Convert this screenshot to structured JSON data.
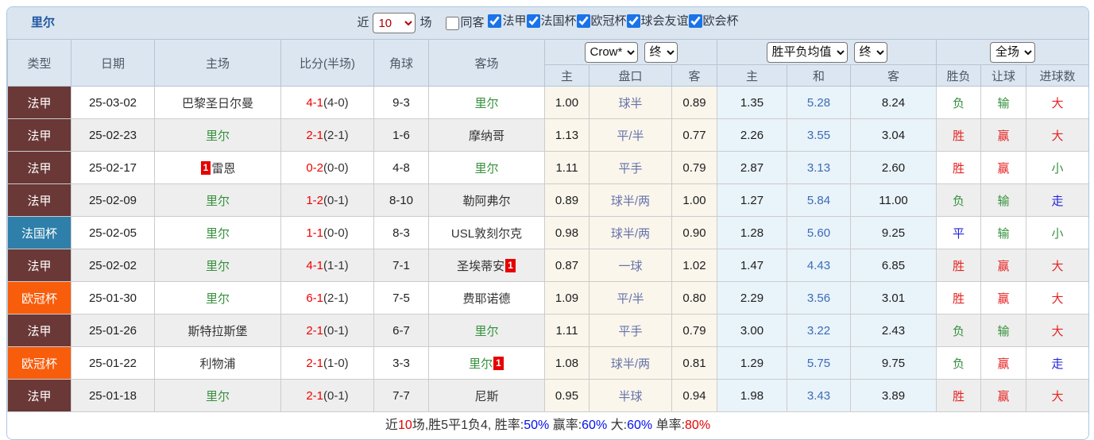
{
  "colors": {
    "topbar_bg": "#dbe5f0",
    "header_bg": "#dce6f1",
    "title_blue": "#1e56a0",
    "type_ligue1": "#693837",
    "type_coupe": "#2e7fa9",
    "type_ucl": "#f85d0c",
    "score_red": "#f00000",
    "team_green": "#35913c",
    "win_red": "#e62222",
    "lose_green": "#2e8b2e",
    "draw_blue": "#2323dd",
    "handicap_col_bg": "#faf6ec",
    "mean_col_bg": "#e9f3fa",
    "line_text": "#6672a9",
    "mean_draw_text": "#3a6cb5",
    "footer_blue": "#0010ee",
    "footer_red": "#e60000",
    "stripe_gray": "#eeeeee"
  },
  "topbar": {
    "team": "里尔",
    "near_label": "近",
    "games_value": "10",
    "games_suffix": "场",
    "same_away_label": "同客",
    "same_away_checked": false,
    "leagues": [
      {
        "label": "法甲",
        "checked": true
      },
      {
        "label": "法国杯",
        "checked": true
      },
      {
        "label": "欧冠杯",
        "checked": true
      },
      {
        "label": "球会友谊",
        "checked": true
      },
      {
        "label": "欧会杯",
        "checked": true
      }
    ]
  },
  "header": {
    "type": "类型",
    "date": "日期",
    "home": "主场",
    "score": "比分(半场)",
    "corner": "角球",
    "away": "客场",
    "odds_source_select": "Crow*",
    "odds_time_select": "终",
    "mean_select": "胜平负均值",
    "mean_time_select": "终",
    "scope_select": "全场",
    "sub_home": "主",
    "sub_line": "盘口",
    "sub_away": "客",
    "sub_mean_home": "主",
    "sub_mean_draw": "和",
    "sub_mean_away": "客",
    "sub_result": "胜负",
    "sub_handicap": "让球",
    "sub_goals": "进球数"
  },
  "rows": [
    {
      "type": "法甲",
      "type_color": "maroon",
      "date": "25-03-02",
      "home": {
        "name": "巴黎圣日尔曼",
        "color": "dark",
        "badge_before": "",
        "badge_after": ""
      },
      "score_ft": "4-1",
      "score_ht": "(4-0)",
      "corner": "9-3",
      "away": {
        "name": "里尔",
        "color": "green",
        "badge_before": "",
        "badge_after": ""
      },
      "odds": {
        "home": "1.00",
        "line": "球半",
        "away": "0.89"
      },
      "mean": {
        "home": "1.35",
        "draw": "5.28",
        "away": "8.24"
      },
      "result": {
        "outcome": "负",
        "outcome_color": "green",
        "handicap": "输",
        "handicap_color": "green",
        "goals": "大",
        "goals_color": "red"
      }
    },
    {
      "type": "法甲",
      "type_color": "maroon",
      "date": "25-02-23",
      "home": {
        "name": "里尔",
        "color": "green",
        "badge_before": "",
        "badge_after": ""
      },
      "score_ft": "2-1",
      "score_ht": "(2-1)",
      "corner": "1-6",
      "away": {
        "name": "摩纳哥",
        "color": "dark",
        "badge_before": "",
        "badge_after": ""
      },
      "odds": {
        "home": "1.13",
        "line": "平/半",
        "away": "0.77"
      },
      "mean": {
        "home": "2.26",
        "draw": "3.55",
        "away": "3.04"
      },
      "result": {
        "outcome": "胜",
        "outcome_color": "red",
        "handicap": "赢",
        "handicap_color": "red",
        "goals": "大",
        "goals_color": "red"
      }
    },
    {
      "type": "法甲",
      "type_color": "maroon",
      "date": "25-02-17",
      "home": {
        "name": "雷恩",
        "color": "dark",
        "badge_before": "1",
        "badge_after": ""
      },
      "score_ft": "0-2",
      "score_ht": "(0-0)",
      "corner": "4-8",
      "away": {
        "name": "里尔",
        "color": "green",
        "badge_before": "",
        "badge_after": ""
      },
      "odds": {
        "home": "1.11",
        "line": "平手",
        "away": "0.79"
      },
      "mean": {
        "home": "2.87",
        "draw": "3.13",
        "away": "2.60"
      },
      "result": {
        "outcome": "胜",
        "outcome_color": "red",
        "handicap": "赢",
        "handicap_color": "red",
        "goals": "小",
        "goals_color": "green"
      }
    },
    {
      "type": "法甲",
      "type_color": "maroon",
      "date": "25-02-09",
      "home": {
        "name": "里尔",
        "color": "green",
        "badge_before": "",
        "badge_after": ""
      },
      "score_ft": "1-2",
      "score_ht": "(0-1)",
      "corner": "8-10",
      "away": {
        "name": "勒阿弗尔",
        "color": "dark",
        "badge_before": "",
        "badge_after": ""
      },
      "odds": {
        "home": "0.89",
        "line": "球半/两",
        "away": "1.00"
      },
      "mean": {
        "home": "1.27",
        "draw": "5.84",
        "away": "11.00"
      },
      "result": {
        "outcome": "负",
        "outcome_color": "green",
        "handicap": "输",
        "handicap_color": "green",
        "goals": "走",
        "goals_color": "blue"
      }
    },
    {
      "type": "法国杯",
      "type_color": "lblue",
      "date": "25-02-05",
      "home": {
        "name": "里尔",
        "color": "green",
        "badge_before": "",
        "badge_after": ""
      },
      "score_ft": "1-1",
      "score_ht": "(0-0)",
      "corner": "8-3",
      "away": {
        "name": "USL敦刻尔克",
        "color": "dark",
        "badge_before": "",
        "badge_after": ""
      },
      "odds": {
        "home": "0.98",
        "line": "球半/两",
        "away": "0.90"
      },
      "mean": {
        "home": "1.28",
        "draw": "5.60",
        "away": "9.25"
      },
      "result": {
        "outcome": "平",
        "outcome_color": "blue",
        "handicap": "输",
        "handicap_color": "green",
        "goals": "小",
        "goals_color": "green"
      }
    },
    {
      "type": "法甲",
      "type_color": "maroon",
      "date": "25-02-02",
      "home": {
        "name": "里尔",
        "color": "green",
        "badge_before": "",
        "badge_after": ""
      },
      "score_ft": "4-1",
      "score_ht": "(1-1)",
      "corner": "7-1",
      "away": {
        "name": "圣埃蒂安",
        "color": "dark",
        "badge_before": "",
        "badge_after": "1"
      },
      "odds": {
        "home": "0.87",
        "line": "一球",
        "away": "1.02"
      },
      "mean": {
        "home": "1.47",
        "draw": "4.43",
        "away": "6.85"
      },
      "result": {
        "outcome": "胜",
        "outcome_color": "red",
        "handicap": "赢",
        "handicap_color": "red",
        "goals": "大",
        "goals_color": "red"
      }
    },
    {
      "type": "欧冠杯",
      "type_color": "orange",
      "date": "25-01-30",
      "home": {
        "name": "里尔",
        "color": "green",
        "badge_before": "",
        "badge_after": ""
      },
      "score_ft": "6-1",
      "score_ht": "(2-1)",
      "corner": "7-5",
      "away": {
        "name": "费耶诺德",
        "color": "dark",
        "badge_before": "",
        "badge_after": ""
      },
      "odds": {
        "home": "1.09",
        "line": "平/半",
        "away": "0.80"
      },
      "mean": {
        "home": "2.29",
        "draw": "3.56",
        "away": "3.01"
      },
      "result": {
        "outcome": "胜",
        "outcome_color": "red",
        "handicap": "赢",
        "handicap_color": "red",
        "goals": "大",
        "goals_color": "red"
      }
    },
    {
      "type": "法甲",
      "type_color": "maroon",
      "date": "25-01-26",
      "home": {
        "name": "斯特拉斯堡",
        "color": "dark",
        "badge_before": "",
        "badge_after": ""
      },
      "score_ft": "2-1",
      "score_ht": "(0-1)",
      "corner": "6-7",
      "away": {
        "name": "里尔",
        "color": "green",
        "badge_before": "",
        "badge_after": ""
      },
      "odds": {
        "home": "1.11",
        "line": "平手",
        "away": "0.79"
      },
      "mean": {
        "home": "3.00",
        "draw": "3.22",
        "away": "2.43"
      },
      "result": {
        "outcome": "负",
        "outcome_color": "green",
        "handicap": "输",
        "handicap_color": "green",
        "goals": "大",
        "goals_color": "red"
      }
    },
    {
      "type": "欧冠杯",
      "type_color": "orange",
      "date": "25-01-22",
      "home": {
        "name": "利物浦",
        "color": "dark",
        "badge_before": "",
        "badge_after": ""
      },
      "score_ft": "2-1",
      "score_ht": "(1-0)",
      "corner": "3-3",
      "away": {
        "name": "里尔",
        "color": "green",
        "badge_before": "",
        "badge_after": "1"
      },
      "odds": {
        "home": "1.08",
        "line": "球半/两",
        "away": "0.81"
      },
      "mean": {
        "home": "1.29",
        "draw": "5.75",
        "away": "9.75"
      },
      "result": {
        "outcome": "负",
        "outcome_color": "green",
        "handicap": "赢",
        "handicap_color": "red",
        "goals": "走",
        "goals_color": "blue"
      }
    },
    {
      "type": "法甲",
      "type_color": "maroon",
      "date": "25-01-18",
      "home": {
        "name": "里尔",
        "color": "green",
        "badge_before": "",
        "badge_after": ""
      },
      "score_ft": "2-1",
      "score_ht": "(0-1)",
      "corner": "7-7",
      "away": {
        "name": "尼斯",
        "color": "dark",
        "badge_before": "",
        "badge_after": ""
      },
      "odds": {
        "home": "0.95",
        "line": "半球",
        "away": "0.94"
      },
      "mean": {
        "home": "1.98",
        "draw": "3.43",
        "away": "3.89"
      },
      "result": {
        "outcome": "胜",
        "outcome_color": "red",
        "handicap": "赢",
        "handicap_color": "red",
        "goals": "大",
        "goals_color": "red"
      }
    }
  ],
  "footer": {
    "segments": [
      {
        "text": "近",
        "color": "dark"
      },
      {
        "text": "10",
        "color": "red"
      },
      {
        "text": "场,胜5平1负4, 胜率:",
        "color": "dark"
      },
      {
        "text": "50%",
        "color": "blue"
      },
      {
        "text": " 赢率:",
        "color": "dark"
      },
      {
        "text": "60%",
        "color": "blue"
      },
      {
        "text": " 大:",
        "color": "dark"
      },
      {
        "text": "60%",
        "color": "blue"
      },
      {
        "text": " 单率:",
        "color": "dark"
      },
      {
        "text": "80%",
        "color": "red"
      }
    ]
  }
}
